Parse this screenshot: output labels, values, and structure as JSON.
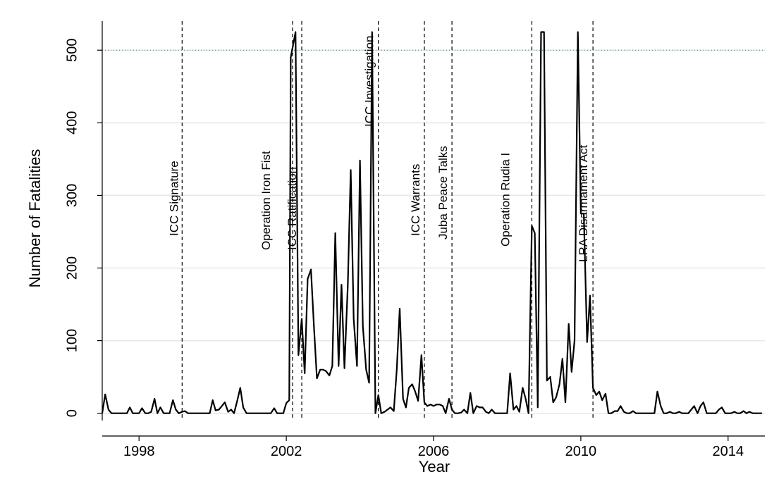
{
  "chart_data": {
    "type": "line",
    "xlabel": "Year",
    "ylabel": "Number of Fatalities",
    "xlim": [
      1997.0,
      2015.0
    ],
    "ylim": [
      -10,
      540
    ],
    "xticks": [
      1998,
      2002,
      2006,
      2010,
      2014
    ],
    "yticks": [
      0,
      100,
      200,
      300,
      400,
      500
    ],
    "grid": true,
    "reference_line": {
      "y": 500,
      "style": "dotted"
    },
    "events": [
      {
        "name": "ICC Signature",
        "x": 1999.17
      },
      {
        "name": "Operation Iron Fist",
        "x": 2002.17
      },
      {
        "name": "ICC Ratification",
        "x": 2002.42
      },
      {
        "name": "ICC Investigation",
        "x": 2004.5
      },
      {
        "name": "ICC Warrants",
        "x": 2005.75
      },
      {
        "name": "Juba Peace Talks",
        "x": 2006.5
      },
      {
        "name": "Operation Rudia I",
        "x": 2008.67
      },
      {
        "name": "LRA Disarmament Act",
        "x": 2010.33
      }
    ],
    "series": [
      {
        "points": [
          [
            1997.0,
            0
          ],
          [
            1997.08,
            26
          ],
          [
            1997.17,
            5
          ],
          [
            1997.25,
            0
          ],
          [
            1997.33,
            0
          ],
          [
            1997.42,
            0
          ],
          [
            1997.5,
            0
          ],
          [
            1997.58,
            0
          ],
          [
            1997.67,
            0
          ],
          [
            1997.75,
            8
          ],
          [
            1997.83,
            0
          ],
          [
            1997.92,
            0
          ],
          [
            1998.0,
            0
          ],
          [
            1998.08,
            7
          ],
          [
            1998.17,
            0
          ],
          [
            1998.25,
            0
          ],
          [
            1998.33,
            2
          ],
          [
            1998.42,
            20
          ],
          [
            1998.5,
            0
          ],
          [
            1998.58,
            8
          ],
          [
            1998.67,
            0
          ],
          [
            1998.75,
            0
          ],
          [
            1998.83,
            0
          ],
          [
            1998.92,
            18
          ],
          [
            1999.0,
            5
          ],
          [
            1999.08,
            0
          ],
          [
            1999.17,
            2
          ],
          [
            1999.25,
            3
          ],
          [
            1999.33,
            0
          ],
          [
            1999.42,
            0
          ],
          [
            1999.5,
            0
          ],
          [
            1999.58,
            0
          ],
          [
            1999.67,
            0
          ],
          [
            1999.75,
            0
          ],
          [
            1999.83,
            0
          ],
          [
            1999.92,
            0
          ],
          [
            2000.0,
            18
          ],
          [
            2000.08,
            4
          ],
          [
            2000.17,
            5
          ],
          [
            2000.25,
            10
          ],
          [
            2000.33,
            15
          ],
          [
            2000.42,
            2
          ],
          [
            2000.5,
            5
          ],
          [
            2000.58,
            0
          ],
          [
            2000.67,
            18
          ],
          [
            2000.75,
            35
          ],
          [
            2000.83,
            8
          ],
          [
            2000.92,
            0
          ],
          [
            2001.0,
            0
          ],
          [
            2001.08,
            0
          ],
          [
            2001.17,
            0
          ],
          [
            2001.25,
            0
          ],
          [
            2001.33,
            0
          ],
          [
            2001.42,
            0
          ],
          [
            2001.5,
            0
          ],
          [
            2001.58,
            0
          ],
          [
            2001.67,
            7
          ],
          [
            2001.75,
            0
          ],
          [
            2001.83,
            0
          ],
          [
            2001.92,
            0
          ],
          [
            2002.0,
            14
          ],
          [
            2002.08,
            18
          ],
          [
            2002.12,
            490
          ],
          [
            2002.25,
            525
          ],
          [
            2002.33,
            80
          ],
          [
            2002.42,
            130
          ],
          [
            2002.5,
            55
          ],
          [
            2002.58,
            185
          ],
          [
            2002.67,
            198
          ],
          [
            2002.75,
            120
          ],
          [
            2002.83,
            48
          ],
          [
            2002.92,
            60
          ],
          [
            2003.0,
            60
          ],
          [
            2003.08,
            58
          ],
          [
            2003.17,
            52
          ],
          [
            2003.25,
            65
          ],
          [
            2003.33,
            248
          ],
          [
            2003.42,
            65
          ],
          [
            2003.5,
            177
          ],
          [
            2003.58,
            62
          ],
          [
            2003.67,
            175
          ],
          [
            2003.75,
            335
          ],
          [
            2003.83,
            130
          ],
          [
            2003.92,
            65
          ],
          [
            2004.0,
            348
          ],
          [
            2004.08,
            120
          ],
          [
            2004.17,
            60
          ],
          [
            2004.25,
            42
          ],
          [
            2004.33,
            525
          ],
          [
            2004.42,
            0
          ],
          [
            2004.5,
            25
          ],
          [
            2004.58,
            0
          ],
          [
            2004.67,
            2
          ],
          [
            2004.75,
            5
          ],
          [
            2004.83,
            8
          ],
          [
            2004.92,
            3
          ],
          [
            2005.0,
            60
          ],
          [
            2005.08,
            144
          ],
          [
            2005.17,
            20
          ],
          [
            2005.25,
            8
          ],
          [
            2005.33,
            35
          ],
          [
            2005.42,
            40
          ],
          [
            2005.5,
            30
          ],
          [
            2005.58,
            17
          ],
          [
            2005.67,
            80
          ],
          [
            2005.75,
            15
          ],
          [
            2005.83,
            10
          ],
          [
            2005.92,
            12
          ],
          [
            2006.0,
            10
          ],
          [
            2006.08,
            12
          ],
          [
            2006.17,
            12
          ],
          [
            2006.25,
            10
          ],
          [
            2006.33,
            0
          ],
          [
            2006.42,
            20
          ],
          [
            2006.5,
            5
          ],
          [
            2006.58,
            0
          ],
          [
            2006.67,
            0
          ],
          [
            2006.75,
            1
          ],
          [
            2006.83,
            5
          ],
          [
            2006.92,
            0
          ],
          [
            2007.0,
            28
          ],
          [
            2007.08,
            0
          ],
          [
            2007.17,
            10
          ],
          [
            2007.25,
            8
          ],
          [
            2007.33,
            8
          ],
          [
            2007.42,
            2
          ],
          [
            2007.5,
            0
          ],
          [
            2007.58,
            5
          ],
          [
            2007.67,
            0
          ],
          [
            2007.75,
            0
          ],
          [
            2007.83,
            0
          ],
          [
            2007.92,
            0
          ],
          [
            2008.0,
            0
          ],
          [
            2008.08,
            55
          ],
          [
            2008.17,
            5
          ],
          [
            2008.25,
            10
          ],
          [
            2008.33,
            2
          ],
          [
            2008.42,
            35
          ],
          [
            2008.5,
            20
          ],
          [
            2008.58,
            0
          ],
          [
            2008.67,
            258
          ],
          [
            2008.75,
            248
          ],
          [
            2008.83,
            8
          ],
          [
            2008.92,
            525
          ],
          [
            2009.0,
            525
          ],
          [
            2009.08,
            45
          ],
          [
            2009.17,
            50
          ],
          [
            2009.25,
            15
          ],
          [
            2009.33,
            22
          ],
          [
            2009.42,
            40
          ],
          [
            2009.5,
            75
          ],
          [
            2009.58,
            15
          ],
          [
            2009.67,
            123
          ],
          [
            2009.75,
            57
          ],
          [
            2009.83,
            100
          ],
          [
            2009.92,
            525
          ],
          [
            2010.0,
            275
          ],
          [
            2010.08,
            275
          ],
          [
            2010.17,
            98
          ],
          [
            2010.25,
            162
          ],
          [
            2010.33,
            35
          ],
          [
            2010.42,
            25
          ],
          [
            2010.5,
            30
          ],
          [
            2010.58,
            18
          ],
          [
            2010.67,
            27
          ],
          [
            2010.75,
            0
          ],
          [
            2010.83,
            0
          ],
          [
            2010.92,
            3
          ],
          [
            2011.0,
            3
          ],
          [
            2011.08,
            10
          ],
          [
            2011.17,
            2
          ],
          [
            2011.25,
            0
          ],
          [
            2011.33,
            0
          ],
          [
            2011.42,
            3
          ],
          [
            2011.5,
            0
          ],
          [
            2011.58,
            0
          ],
          [
            2011.67,
            0
          ],
          [
            2011.75,
            0
          ],
          [
            2011.83,
            0
          ],
          [
            2011.92,
            0
          ],
          [
            2012.0,
            0
          ],
          [
            2012.08,
            30
          ],
          [
            2012.17,
            10
          ],
          [
            2012.25,
            0
          ],
          [
            2012.33,
            0
          ],
          [
            2012.42,
            2
          ],
          [
            2012.5,
            0
          ],
          [
            2012.58,
            0
          ],
          [
            2012.67,
            2
          ],
          [
            2012.75,
            0
          ],
          [
            2012.83,
            0
          ],
          [
            2012.92,
            0
          ],
          [
            2013.0,
            5
          ],
          [
            2013.08,
            10
          ],
          [
            2013.17,
            0
          ],
          [
            2013.25,
            10
          ],
          [
            2013.33,
            15
          ],
          [
            2013.42,
            0
          ],
          [
            2013.5,
            0
          ],
          [
            2013.58,
            0
          ],
          [
            2013.67,
            0
          ],
          [
            2013.75,
            5
          ],
          [
            2013.83,
            8
          ],
          [
            2013.92,
            0
          ],
          [
            2014.0,
            0
          ],
          [
            2014.08,
            0
          ],
          [
            2014.17,
            2
          ],
          [
            2014.25,
            0
          ],
          [
            2014.33,
            0
          ],
          [
            2014.42,
            3
          ],
          [
            2014.5,
            0
          ],
          [
            2014.58,
            2
          ],
          [
            2014.67,
            0
          ],
          [
            2014.75,
            0
          ],
          [
            2014.83,
            0
          ],
          [
            2014.92,
            0
          ]
        ]
      }
    ]
  }
}
